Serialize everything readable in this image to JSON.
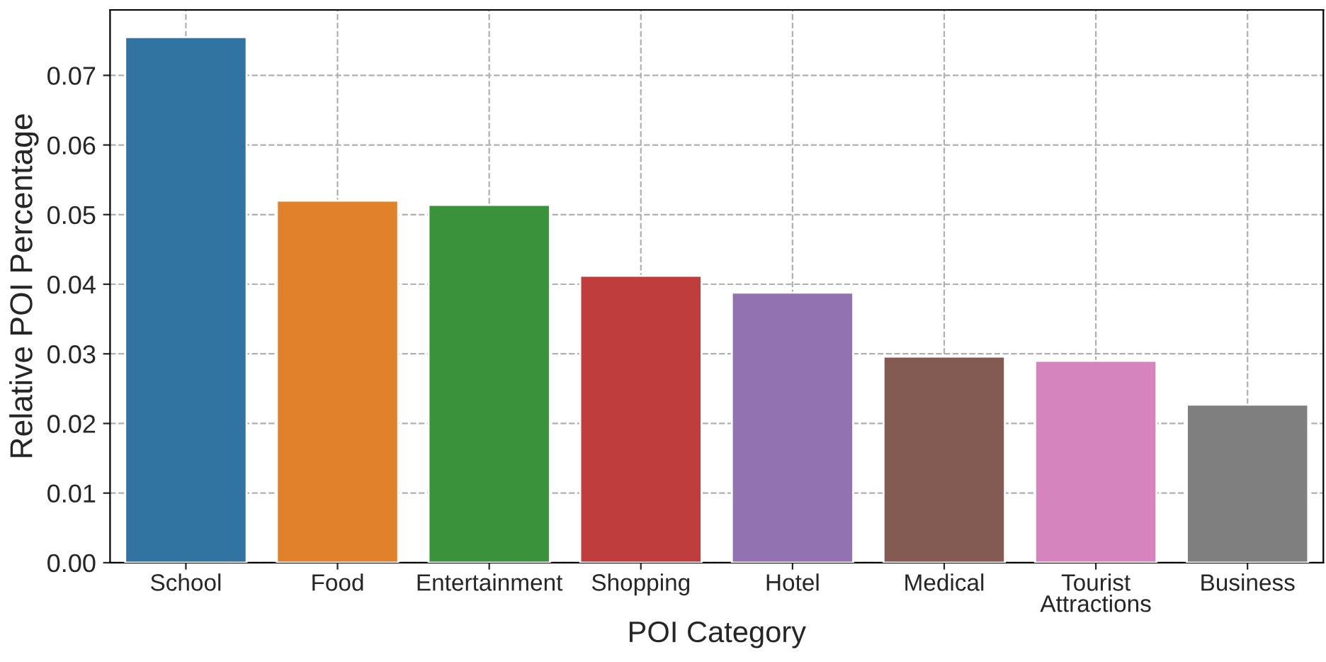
{
  "chart_data": {
    "type": "bar",
    "xlabel": "POI Category",
    "ylabel": "Relative POI Percentage",
    "categories": [
      "School",
      "Food",
      "Entertainment",
      "Shopping",
      "Hotel",
      "Medical",
      "Tourist\nAttractions",
      "Business"
    ],
    "values": [
      0.0755,
      0.052,
      0.0514,
      0.0412,
      0.0388,
      0.0296,
      0.029,
      0.0227
    ],
    "colors": [
      "#3274a1",
      "#e1812c",
      "#3a923a",
      "#c03d3e",
      "#9372b2",
      "#845b53",
      "#d684bd",
      "#7f7f7f"
    ],
    "ylim": [
      0,
      0.0794
    ],
    "yticks": [
      {
        "value": 0,
        "label": "0.00"
      },
      {
        "value": 0.01,
        "label": "0.01"
      },
      {
        "value": 0.02,
        "label": "0.02"
      },
      {
        "value": 0.03,
        "label": "0.03"
      },
      {
        "value": 0.04,
        "label": "0.04"
      },
      {
        "value": 0.05,
        "label": "0.05"
      },
      {
        "value": 0.06,
        "label": "0.06"
      },
      {
        "value": 0.07,
        "label": "0.07"
      }
    ],
    "grid": true,
    "line_style": "dashed"
  }
}
